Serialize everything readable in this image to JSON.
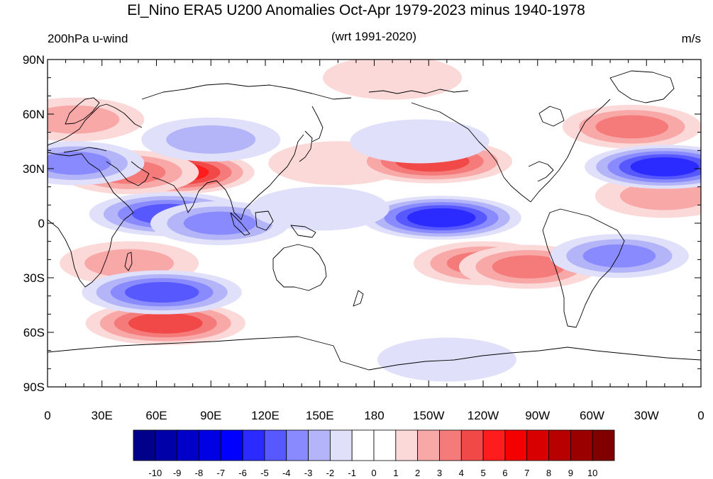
{
  "header": {
    "title": "El_Nino ERA5 U200 Anomalies Oct-Apr 1979-2023 minus 1940-1978",
    "left_label": "200hPa u-wind",
    "center_label": "(wrt 1991-2020)",
    "right_label": "m/s"
  },
  "axes": {
    "lat_ticks": [
      "90N",
      "60N",
      "30N",
      "0",
      "30S",
      "60S",
      "90S"
    ],
    "lon_ticks": [
      "0",
      "30E",
      "60E",
      "90E",
      "120E",
      "150E",
      "180",
      "150W",
      "120W",
      "90W",
      "60W",
      "30W",
      "0"
    ]
  },
  "colorbar": {
    "labels": [
      "-10",
      "-9",
      "-8",
      "-7",
      "-6",
      "-5",
      "-4",
      "-3",
      "-2",
      "-1",
      "0",
      "1",
      "2",
      "3",
      "4",
      "5",
      "6",
      "7",
      "8",
      "9",
      "10"
    ],
    "colors": [
      "#00008b",
      "#0000a8",
      "#0000c8",
      "#0000e4",
      "#0000ff",
      "#2b2bff",
      "#5858ff",
      "#8a8aff",
      "#b4b4f8",
      "#e0e0fa",
      "#ffffff",
      "#ffffff",
      "#fcd9d9",
      "#f9a8a8",
      "#f57a7a",
      "#f14848",
      "#ff1c1c",
      "#f50000",
      "#d80000",
      "#b80000",
      "#9a0000",
      "#800000"
    ]
  },
  "chart_data": {
    "type": "heatmap",
    "title": "El_Nino ERA5 U200 Anomalies Oct-Apr 1979-2023 minus 1940-1978",
    "units": "m/s",
    "lon_range": [
      0,
      360
    ],
    "lat_range": [
      -90,
      90
    ],
    "contour_interval": 1,
    "anomaly_centers": [
      {
        "lon": 70,
        "lat": 28,
        "value": 5
      },
      {
        "lon": 45,
        "lat": 28,
        "value": 3
      },
      {
        "lon": 15,
        "lat": 57,
        "value": 2
      },
      {
        "lon": 160,
        "lat": 33,
        "value": 1
      },
      {
        "lon": 212,
        "lat": 34,
        "value": 4
      },
      {
        "lon": 322,
        "lat": 53,
        "value": 3
      },
      {
        "lon": 340,
        "lat": 15,
        "value": 2
      },
      {
        "lon": 65,
        "lat": -55,
        "value": 4
      },
      {
        "lon": 45,
        "lat": -22,
        "value": 2
      },
      {
        "lon": 240,
        "lat": -22,
        "value": 3
      },
      {
        "lon": 265,
        "lat": -24,
        "value": 3
      },
      {
        "lon": 190,
        "lat": 80,
        "value": 1
      },
      {
        "lon": 340,
        "lat": 31,
        "value": -5
      },
      {
        "lon": 67,
        "lat": 5,
        "value": -4
      },
      {
        "lon": 217,
        "lat": 3,
        "value": -5
      },
      {
        "lon": 315,
        "lat": -18,
        "value": -3
      },
      {
        "lon": 63,
        "lat": -38,
        "value": -4
      },
      {
        "lon": 90,
        "lat": 46,
        "value": -2
      },
      {
        "lon": 15,
        "lat": 33,
        "value": -3
      },
      {
        "lon": 95,
        "lat": 0,
        "value": -3
      },
      {
        "lon": 150,
        "lat": 8,
        "value": -1
      },
      {
        "lon": 220,
        "lat": -75,
        "value": -1
      },
      {
        "lon": 205,
        "lat": 45,
        "value": -1
      }
    ]
  }
}
